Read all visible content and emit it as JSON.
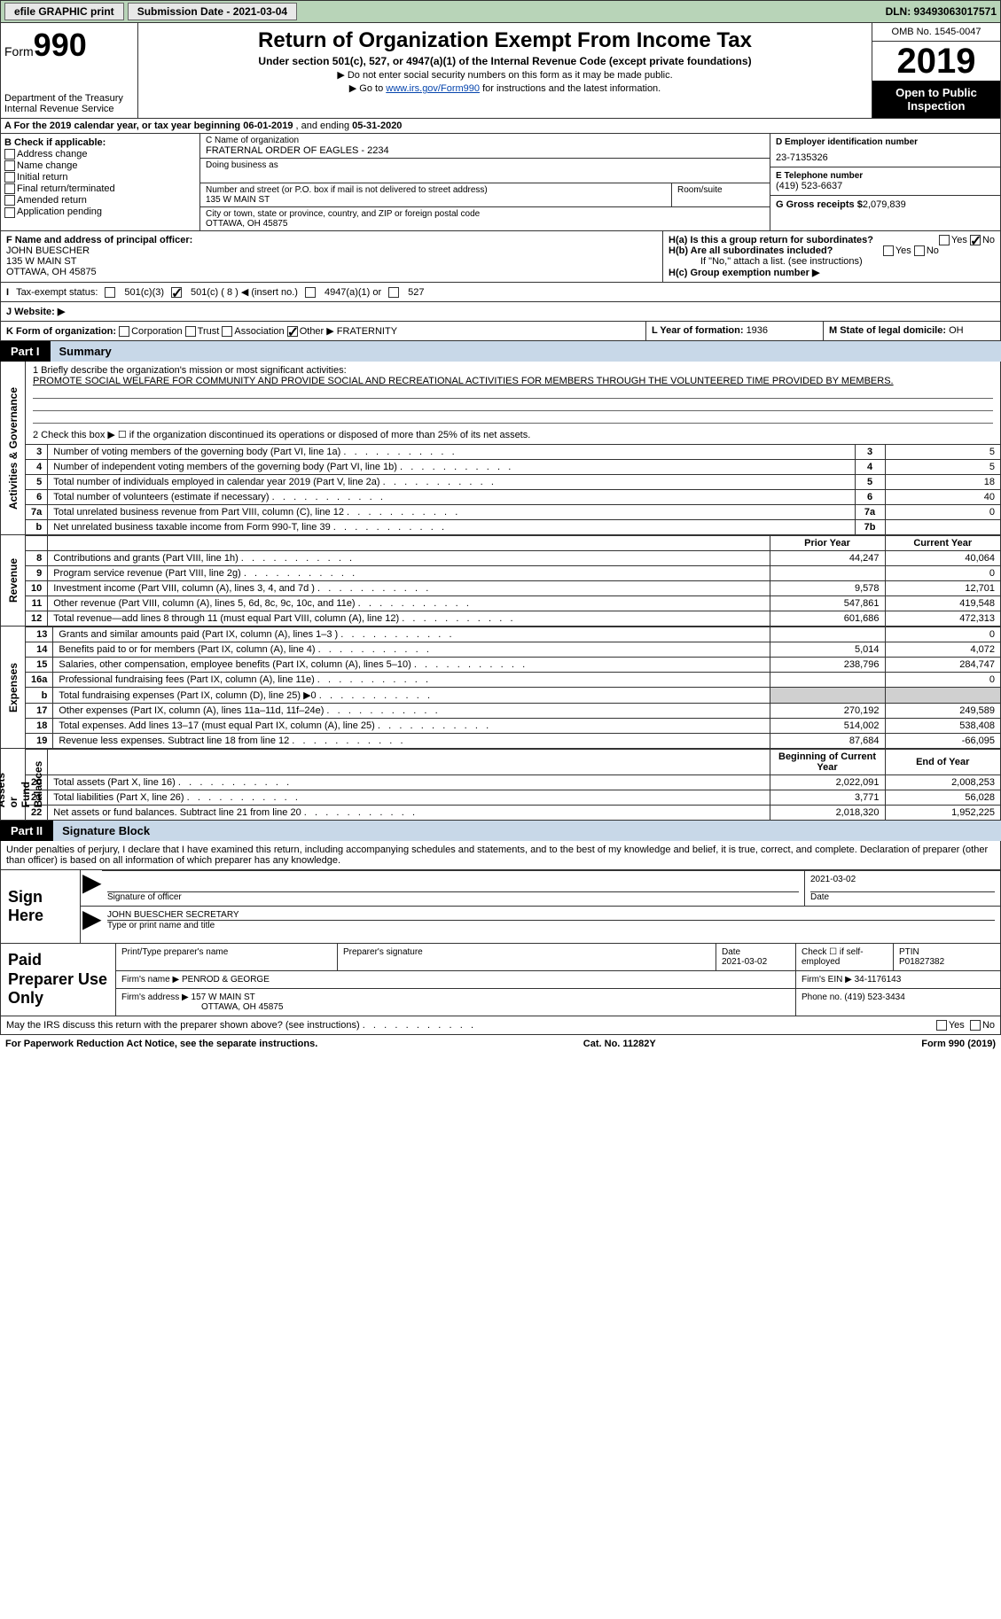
{
  "topbar": {
    "efile_label": "efile GRAPHIC print",
    "submission_label": "Submission Date - 2021-03-04",
    "dln_label": "DLN: 93493063017571"
  },
  "header": {
    "form_word": "Form",
    "form_num": "990",
    "dept": "Department of the Treasury\nInternal Revenue Service",
    "title": "Return of Organization Exempt From Income Tax",
    "subtitle": "Under section 501(c), 527, or 4947(a)(1) of the Internal Revenue Code (except private foundations)",
    "instruct1": "▶ Do not enter social security numbers on this form as it may be made public.",
    "instruct2_pre": "▶ Go to ",
    "instruct2_link": "www.irs.gov/Form990",
    "instruct2_post": " for instructions and the latest information.",
    "omb": "OMB No. 1545-0047",
    "year": "2019",
    "inspect": "Open to Public Inspection"
  },
  "rowA": {
    "pre": "A For the 2019 calendar year, or tax year beginning ",
    "begin": "06-01-2019",
    "mid": " , and ending ",
    "end": "05-31-2020"
  },
  "colB": {
    "label": "B Check if applicable:",
    "opts": [
      "Address change",
      "Name change",
      "Initial return",
      "Final return/terminated",
      "Amended return",
      "Application pending"
    ]
  },
  "colC": {
    "name_label": "C Name of organization",
    "name": "FRATERNAL ORDER OF EAGLES - 2234",
    "dba_label": "Doing business as",
    "addr_label": "Number and street (or P.O. box if mail is not delivered to street address)",
    "addr": "135 W MAIN ST",
    "room_label": "Room/suite",
    "city_label": "City or town, state or province, country, and ZIP or foreign postal code",
    "city": "OTTAWA, OH  45875"
  },
  "colD": {
    "ein_label": "D Employer identification number",
    "ein": "23-7135326",
    "phone_label": "E Telephone number",
    "phone": "(419) 523-6637",
    "gross_label": "G Gross receipts $",
    "gross": "2,079,839"
  },
  "rowF": {
    "label": "F Name and address of principal officer:",
    "name": "JOHN BUESCHER",
    "addr1": "135 W MAIN ST",
    "addr2": "OTTAWA, OH  45875"
  },
  "rowH": {
    "ha_label": "H(a)  Is this a group return for subordinates?",
    "hb_label": "H(b)  Are all subordinates included?",
    "hb_note": "If \"No,\" attach a list. (see instructions)",
    "hc_label": "H(c)  Group exemption number ▶",
    "yes": "Yes",
    "no": "No"
  },
  "rowI": {
    "label": "Tax-exempt status:",
    "o1": "501(c)(3)",
    "o2": "501(c) ( 8 ) ◀ (insert no.)",
    "o3": "4947(a)(1) or",
    "o4": "527"
  },
  "rowJ": {
    "label": "J    Website: ▶"
  },
  "rowK": {
    "label": "K Form of organization:",
    "opts": [
      "Corporation",
      "Trust",
      "Association",
      "Other ▶"
    ],
    "other_val": "FRATERNITY",
    "year_label": "L Year of formation: ",
    "year": "1936",
    "state_label": "M State of legal domicile: ",
    "state": "OH"
  },
  "part1": {
    "num": "Part I",
    "title": "Summary"
  },
  "mission": {
    "q1_label": "1   Briefly describe the organization's mission or most significant activities:",
    "q1_text": "PROMOTE SOCIAL WELFARE FOR COMMUNITY AND PROVIDE SOCIAL AND RECREATIONAL ACTIVITIES FOR MEMBERS THROUGH THE VOLUNTEERED TIME PROVIDED BY MEMBERS.",
    "q2_label": "2   Check this box ▶ ☐  if the organization discontinued its operations or disposed of more than 25% of its net assets."
  },
  "side_labels": {
    "gov": "Activities & Governance",
    "rev": "Revenue",
    "exp": "Expenses",
    "net": "Net Assets or\nFund Balances"
  },
  "lines_gov": [
    {
      "n": "3",
      "d": "Number of voting members of the governing body (Part VI, line 1a)",
      "r": "3",
      "v": "5"
    },
    {
      "n": "4",
      "d": "Number of independent voting members of the governing body (Part VI, line 1b)",
      "r": "4",
      "v": "5"
    },
    {
      "n": "5",
      "d": "Total number of individuals employed in calendar year 2019 (Part V, line 2a)",
      "r": "5",
      "v": "18"
    },
    {
      "n": "6",
      "d": "Total number of volunteers (estimate if necessary)",
      "r": "6",
      "v": "40"
    },
    {
      "n": "7a",
      "d": "Total unrelated business revenue from Part VIII, column (C), line 12",
      "r": "7a",
      "v": "0"
    },
    {
      "n": "b",
      "d": "Net unrelated business taxable income from Form 990-T, line 39",
      "r": "7b",
      "v": ""
    }
  ],
  "col_headers": {
    "prior": "Prior Year",
    "current": "Current Year",
    "begin": "Beginning of Current Year",
    "end": "End of Year"
  },
  "lines_rev": [
    {
      "n": "8",
      "d": "Contributions and grants (Part VIII, line 1h)",
      "p": "44,247",
      "c": "40,064"
    },
    {
      "n": "9",
      "d": "Program service revenue (Part VIII, line 2g)",
      "p": "",
      "c": "0"
    },
    {
      "n": "10",
      "d": "Investment income (Part VIII, column (A), lines 3, 4, and 7d )",
      "p": "9,578",
      "c": "12,701"
    },
    {
      "n": "11",
      "d": "Other revenue (Part VIII, column (A), lines 5, 6d, 8c, 9c, 10c, and 11e)",
      "p": "547,861",
      "c": "419,548"
    },
    {
      "n": "12",
      "d": "Total revenue—add lines 8 through 11 (must equal Part VIII, column (A), line 12)",
      "p": "601,686",
      "c": "472,313"
    }
  ],
  "lines_exp": [
    {
      "n": "13",
      "d": "Grants and similar amounts paid (Part IX, column (A), lines 1–3 )",
      "p": "",
      "c": "0"
    },
    {
      "n": "14",
      "d": "Benefits paid to or for members (Part IX, column (A), line 4)",
      "p": "5,014",
      "c": "4,072"
    },
    {
      "n": "15",
      "d": "Salaries, other compensation, employee benefits (Part IX, column (A), lines 5–10)",
      "p": "238,796",
      "c": "284,747"
    },
    {
      "n": "16a",
      "d": "Professional fundraising fees (Part IX, column (A), line 11e)",
      "p": "",
      "c": "0"
    },
    {
      "n": "b",
      "d": "Total fundraising expenses (Part IX, column (D), line 25) ▶0",
      "p": "GRAY",
      "c": "GRAY"
    },
    {
      "n": "17",
      "d": "Other expenses (Part IX, column (A), lines 11a–11d, 11f–24e)",
      "p": "270,192",
      "c": "249,589"
    },
    {
      "n": "18",
      "d": "Total expenses. Add lines 13–17 (must equal Part IX, column (A), line 25)",
      "p": "514,002",
      "c": "538,408"
    },
    {
      "n": "19",
      "d": "Revenue less expenses. Subtract line 18 from line 12",
      "p": "87,684",
      "c": "-66,095"
    }
  ],
  "lines_net": [
    {
      "n": "20",
      "d": "Total assets (Part X, line 16)",
      "p": "2,022,091",
      "c": "2,008,253"
    },
    {
      "n": "21",
      "d": "Total liabilities (Part X, line 26)",
      "p": "3,771",
      "c": "56,028"
    },
    {
      "n": "22",
      "d": "Net assets or fund balances. Subtract line 21 from line 20",
      "p": "2,018,320",
      "c": "1,952,225"
    }
  ],
  "part2": {
    "num": "Part II",
    "title": "Signature Block"
  },
  "sig": {
    "penalty": "Under penalties of perjury, I declare that I have examined this return, including accompanying schedules and statements, and to the best of my knowledge and belief, it is true, correct, and complete. Declaration of preparer (other than officer) is based on all information of which preparer has any knowledge.",
    "sign_here": "Sign Here",
    "sig_officer": "Signature of officer",
    "date_label": "Date",
    "date_val": "2021-03-02",
    "name_title": "JOHN BUESCHER  SECRETARY",
    "name_label": "Type or print name and title"
  },
  "prep": {
    "label": "Paid Preparer Use Only",
    "h1": "Print/Type preparer's name",
    "h2": "Preparer's signature",
    "h3_l": "Date",
    "h3_v": "2021-03-02",
    "h4_l": "Check ☐ if self-employed",
    "h5_l": "PTIN",
    "h5_v": "P01827382",
    "firm_name_l": "Firm's name    ▶",
    "firm_name": "PENROD & GEORGE",
    "firm_ein_l": "Firm's EIN ▶",
    "firm_ein": "34-1176143",
    "firm_addr_l": "Firm's address ▶",
    "firm_addr1": "157 W MAIN ST",
    "firm_addr2": "OTTAWA, OH  45875",
    "phone_l": "Phone no.",
    "phone": "(419) 523-3434"
  },
  "footer": {
    "discuss": "May the IRS discuss this return with the preparer shown above? (see instructions)",
    "yes": "Yes",
    "no": "No",
    "pra": "For Paperwork Reduction Act Notice, see the separate instructions.",
    "cat": "Cat. No. 11282Y",
    "form": "Form 990 (2019)"
  },
  "colors": {
    "topbar_bg": "#b8d4b8",
    "part_title_bg": "#c8d8e8",
    "link": "#0645ad"
  }
}
